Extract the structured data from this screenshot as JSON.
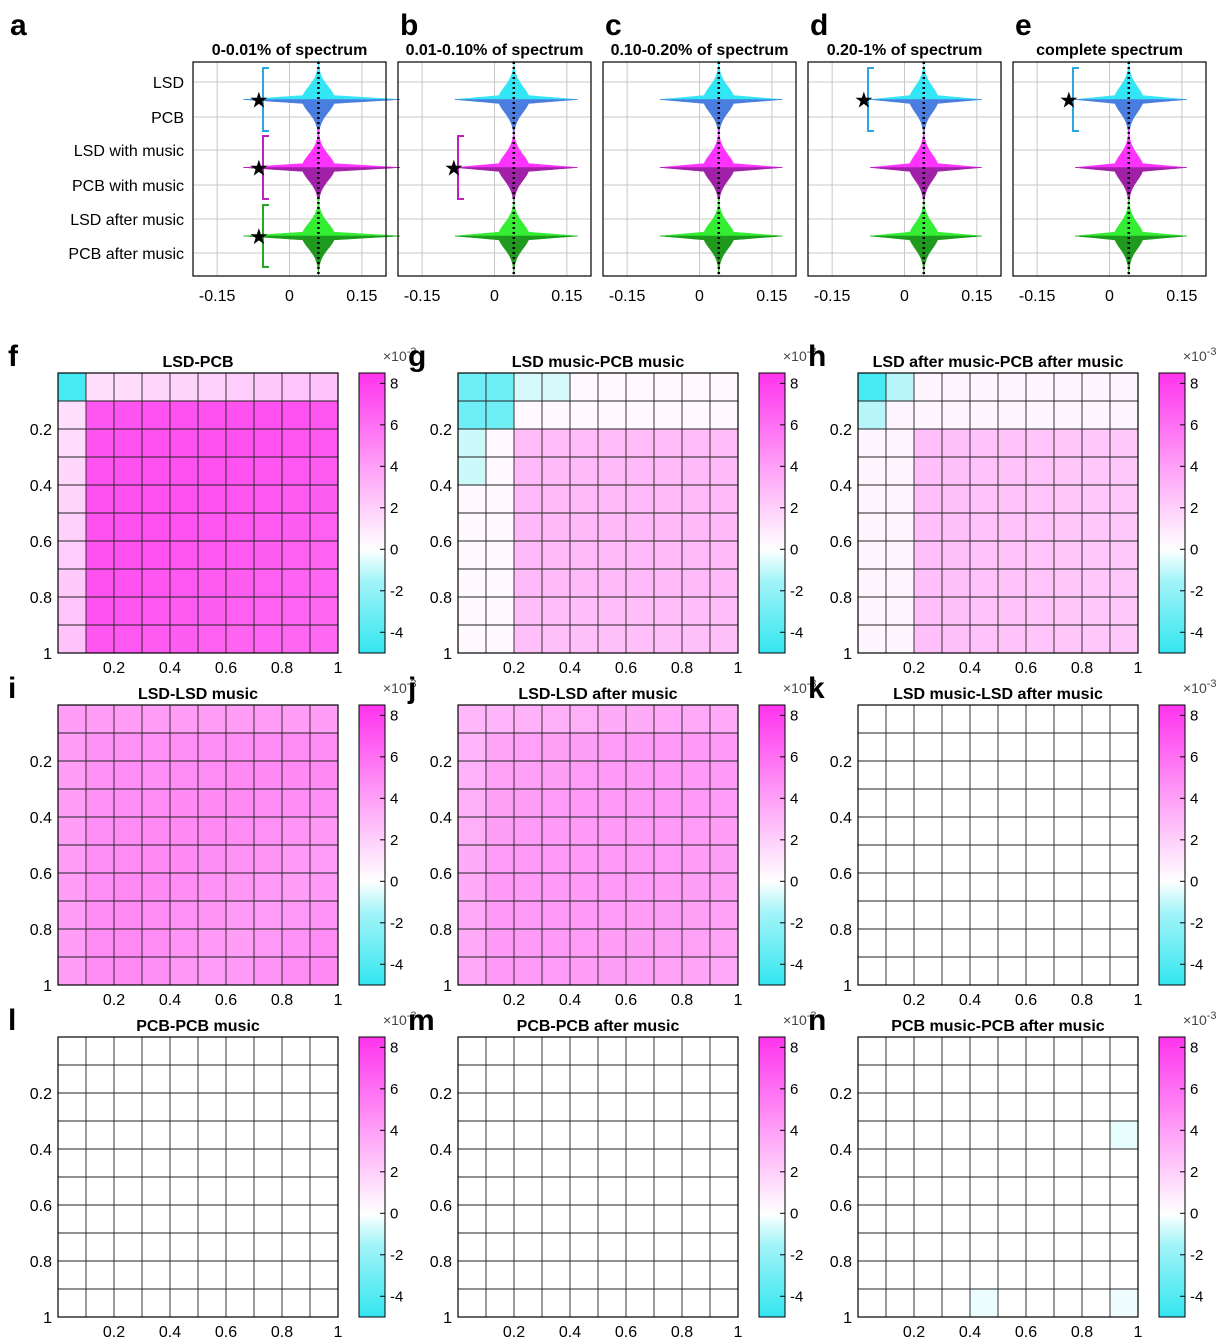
{
  "chart_data": [
    {
      "type": "violin",
      "id": "violins",
      "row_labels": [
        "LSD",
        "PCB",
        "LSD with music",
        "PCB with music",
        "LSD after music",
        "PCB after music"
      ],
      "pairs": [
        {
          "name": "LSD vs PCB",
          "colors": [
            "#33e6f5",
            "#4a7de0"
          ],
          "bracket_color": "#2aa6e6"
        },
        {
          "name": "LSD with music vs PCB with music",
          "colors": [
            "#ff33ff",
            "#a020a8"
          ],
          "bracket_color": "#c020c0"
        },
        {
          "name": "LSD after music vs PCB after music",
          "colors": [
            "#33ee33",
            "#1f9a1f"
          ],
          "bracket_color": "#22aa22"
        }
      ],
      "xticks": [
        -0.15,
        0,
        0.15
      ],
      "xtick_labels": [
        "-0.15",
        "0",
        "0.15"
      ],
      "xlim": [
        -0.2,
        0.2
      ],
      "panels": [
        {
          "letter": "a",
          "title": "0-0.01% of spectrum",
          "median": 0.06,
          "spread": 0.034,
          "tail": 0.135,
          "significant": [
            true,
            true,
            true
          ]
        },
        {
          "letter": "b",
          "title": "0.01-0.10% of spectrum",
          "median": 0.04,
          "spread": 0.032,
          "tail": 0.1,
          "significant": [
            false,
            true,
            false
          ]
        },
        {
          "letter": "c",
          "title": "0.10-0.20% of spectrum",
          "median": 0.04,
          "spread": 0.032,
          "tail": 0.1,
          "significant": [
            false,
            false,
            false
          ]
        },
        {
          "letter": "d",
          "title": "0.20-1% of spectrum",
          "median": 0.04,
          "spread": 0.03,
          "tail": 0.09,
          "significant": [
            true,
            false,
            false
          ]
        },
        {
          "letter": "e",
          "title": "complete spectrum",
          "median": 0.04,
          "spread": 0.03,
          "tail": 0.09,
          "significant": [
            true,
            false,
            false
          ]
        }
      ]
    },
    {
      "type": "heatmap",
      "id": "heatmaps",
      "color_scale": {
        "min": -5,
        "max": 8.5,
        "exponent_label": "×10",
        "exponent": "-3",
        "ticks": [
          -4,
          -2,
          0,
          2,
          4,
          6,
          8
        ],
        "tick_labels": [
          "-4",
          "-2",
          "0",
          "2",
          "4",
          "6",
          "8"
        ],
        "colors": {
          "negative": "#33e6f0",
          "zero": "#ffffff",
          "positive": "#ff33ee"
        }
      },
      "axis": {
        "ticks": [
          0.2,
          0.4,
          0.6,
          0.8,
          1
        ],
        "tick_labels": [
          "0.2",
          "0.4",
          "0.6",
          "0.8",
          "1"
        ],
        "grid_size": 10
      },
      "panels": [
        {
          "letter": "f",
          "title": "LSD-PCB",
          "pattern": "lsd_pcb"
        },
        {
          "letter": "g",
          "title": "LSD music-PCB music",
          "pattern": "music"
        },
        {
          "letter": "h",
          "title": "LSD after music-PCB after music",
          "pattern": "after"
        },
        {
          "letter": "i",
          "title": "LSD-LSD music",
          "pattern": "uniform_strong"
        },
        {
          "letter": "j",
          "title": "LSD-LSD after music",
          "pattern": "uniform_medium"
        },
        {
          "letter": "k",
          "title": "LSD music-LSD after music",
          "pattern": "blank"
        },
        {
          "letter": "l",
          "title": "PCB-PCB music",
          "pattern": "blank"
        },
        {
          "letter": "m",
          "title": "PCB-PCB after music",
          "pattern": "blank"
        },
        {
          "letter": "n",
          "title": "PCB music-PCB after music",
          "pattern": "faint"
        }
      ]
    }
  ]
}
